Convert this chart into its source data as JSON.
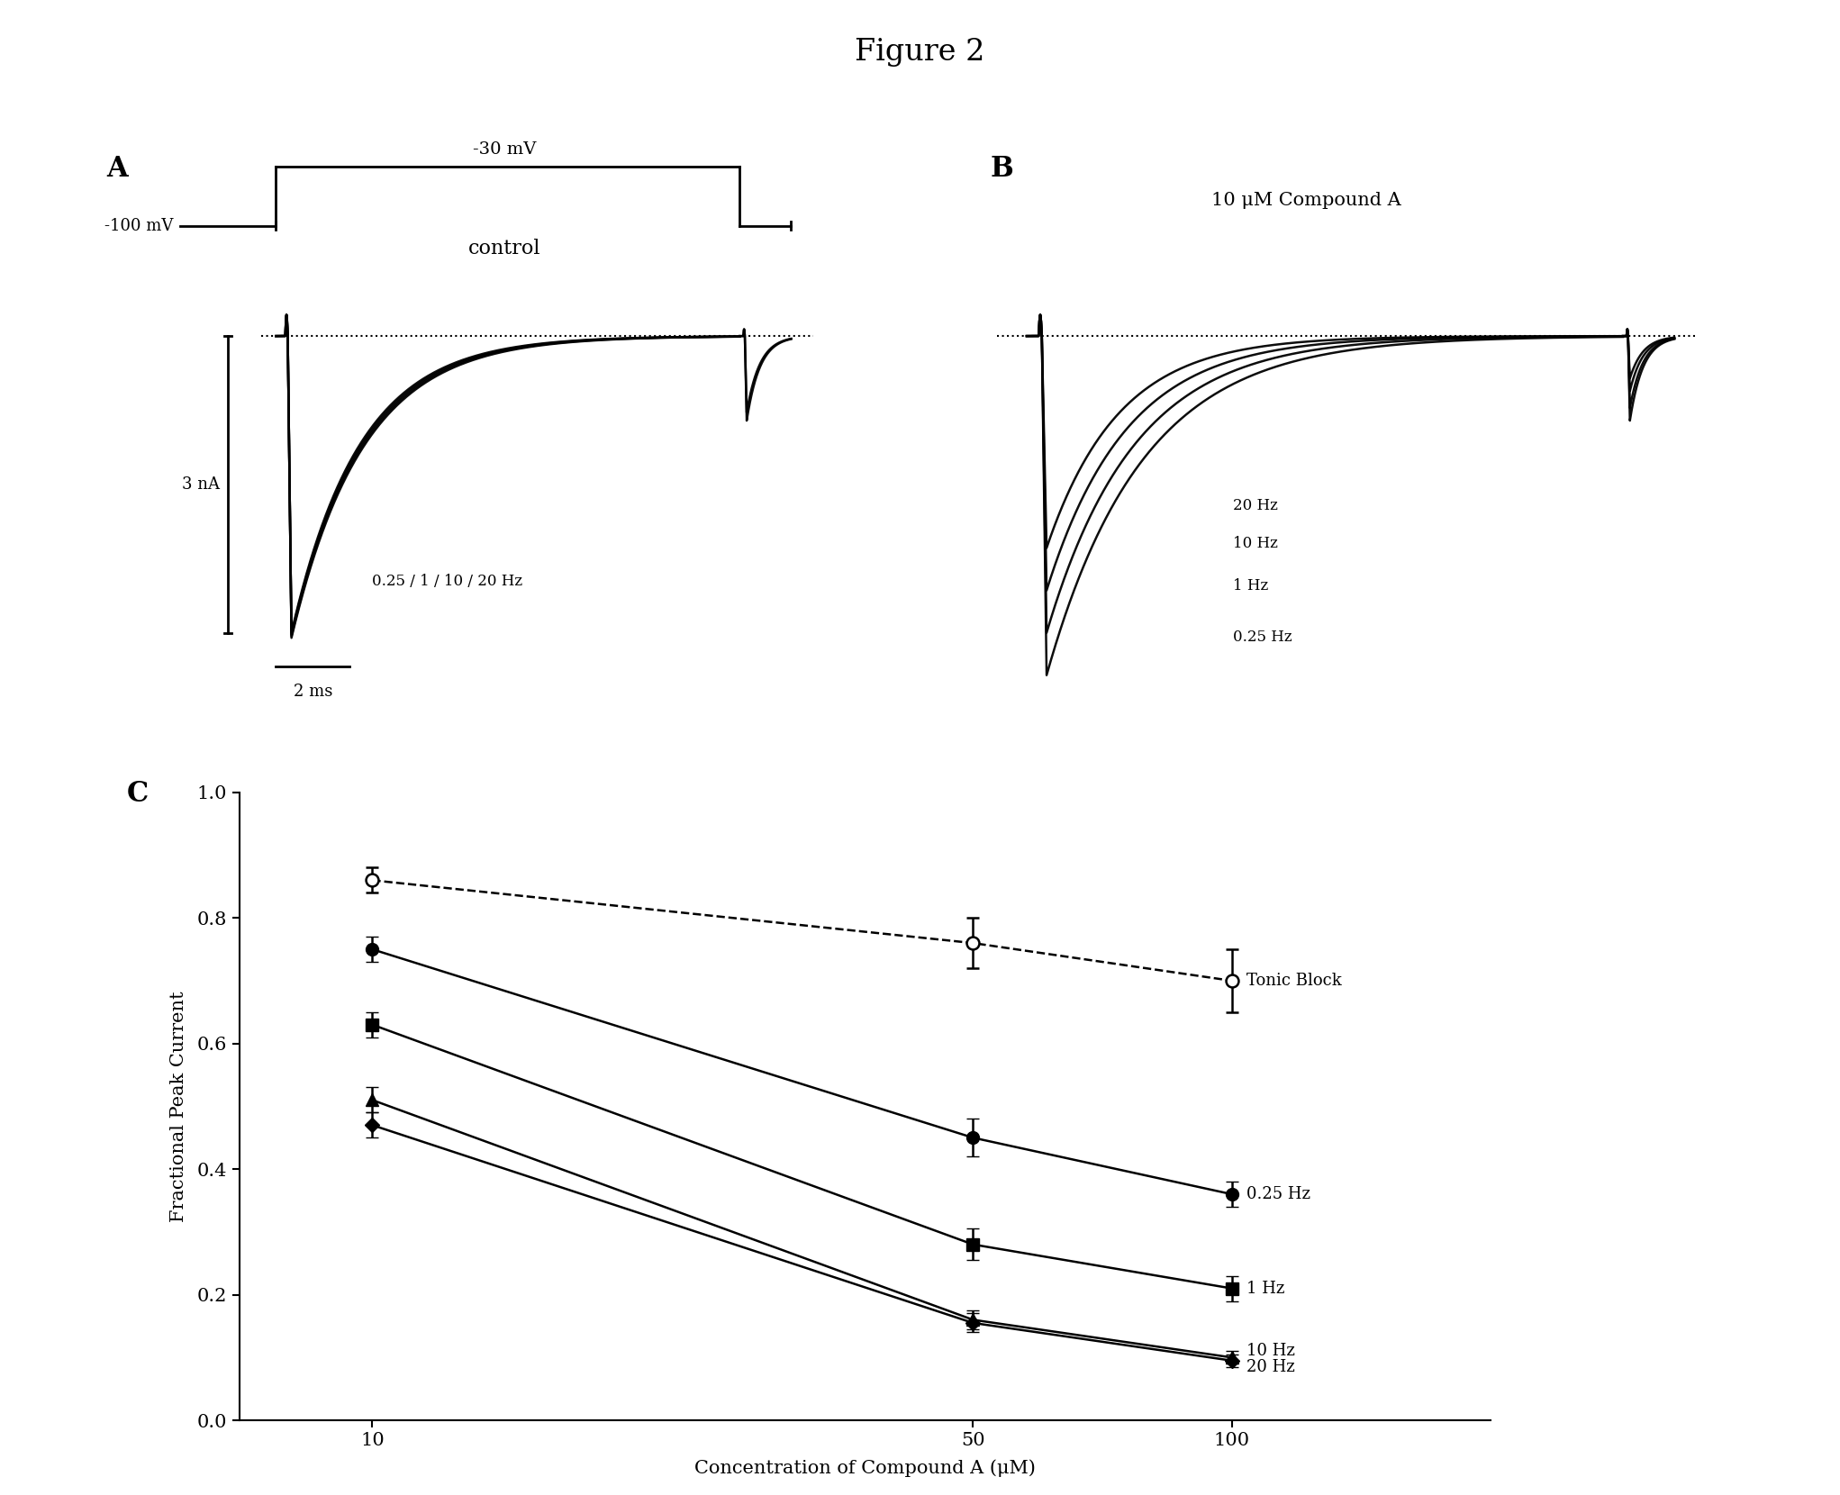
{
  "figure_title": "Figure 2",
  "panel_A_label": "A",
  "panel_B_label": "B",
  "panel_C_label": "C",
  "panel_A_text_voltage_step": "-30 mV",
  "panel_A_text_holding": "-100 mV",
  "panel_A_text_label": "control",
  "panel_A_scale_current": "3 nA",
  "panel_A_scale_time": "2 ms",
  "panel_A_freq_label": "0.25 / 1 / 10 / 20 Hz",
  "panel_B_text_label": "10 μM Compound A",
  "panel_B_freq_labels": [
    "20 Hz",
    "10 Hz",
    "1 Hz",
    "0.25 Hz"
  ],
  "tonic_block": {
    "x": [
      10,
      50,
      100
    ],
    "y": [
      0.86,
      0.76,
      0.7
    ],
    "yerr": [
      0.02,
      0.04,
      0.05
    ],
    "label": "Tonic Block"
  },
  "freq_025hz": {
    "x": [
      10,
      50,
      100
    ],
    "y": [
      0.75,
      0.45,
      0.36
    ],
    "yerr": [
      0.02,
      0.03,
      0.02
    ],
    "label": "0.25 Hz"
  },
  "freq_1hz": {
    "x": [
      10,
      50,
      100
    ],
    "y": [
      0.63,
      0.28,
      0.21
    ],
    "yerr": [
      0.02,
      0.025,
      0.02
    ],
    "label": "1 Hz"
  },
  "freq_10hz": {
    "x": [
      10,
      50,
      100
    ],
    "y": [
      0.51,
      0.16,
      0.1
    ],
    "yerr": [
      0.02,
      0.015,
      0.01
    ],
    "label": "10 Hz"
  },
  "freq_20hz": {
    "x": [
      10,
      50,
      100
    ],
    "y": [
      0.47,
      0.155,
      0.095
    ],
    "yerr": [
      0.02,
      0.015,
      0.01
    ],
    "label": "20 Hz"
  },
  "xlabel": "Concentration of Compound A (μM)",
  "ylabel": "Fractional Peak Current",
  "ylim": [
    0.0,
    1.0
  ],
  "yticks": [
    0.0,
    0.2,
    0.4,
    0.6,
    0.8,
    1.0
  ],
  "xticks": [
    10,
    50,
    100
  ],
  "background_color": "#ffffff"
}
